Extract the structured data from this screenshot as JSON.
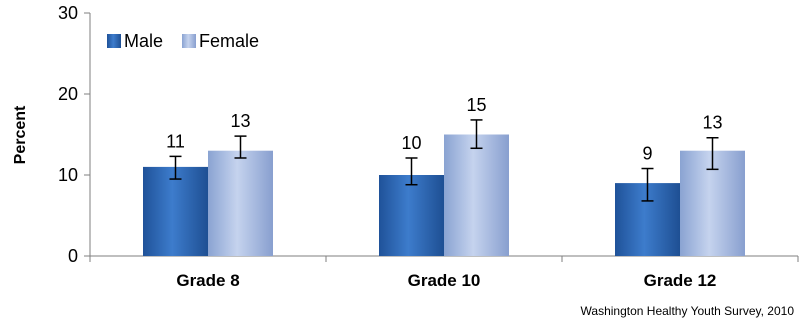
{
  "chart_data": {
    "type": "bar",
    "categories": [
      "Grade 8",
      "Grade 10",
      "Grade 12"
    ],
    "series": [
      {
        "name": "Male",
        "values": [
          11,
          10,
          9
        ],
        "error_low": [
          9.5,
          8.8,
          6.8
        ],
        "error_high": [
          12.3,
          12.1,
          10.8
        ],
        "color": "#2f6cb5"
      },
      {
        "name": "Female",
        "values": [
          13,
          15,
          13
        ],
        "error_low": [
          12.1,
          13.3,
          10.7
        ],
        "error_high": [
          14.8,
          16.8,
          14.6
        ],
        "color": "#9db3dd"
      }
    ],
    "data_labels": [
      [
        "11",
        "10",
        "9"
      ],
      [
        "13",
        "15",
        "13"
      ]
    ],
    "ylabel": "Percent",
    "ylim": [
      0,
      30
    ],
    "yticks": [
      "0",
      "10",
      "20",
      "30"
    ],
    "legend_position": "top-left",
    "source": "Washington  Healthy Youth Survey, 2010"
  }
}
